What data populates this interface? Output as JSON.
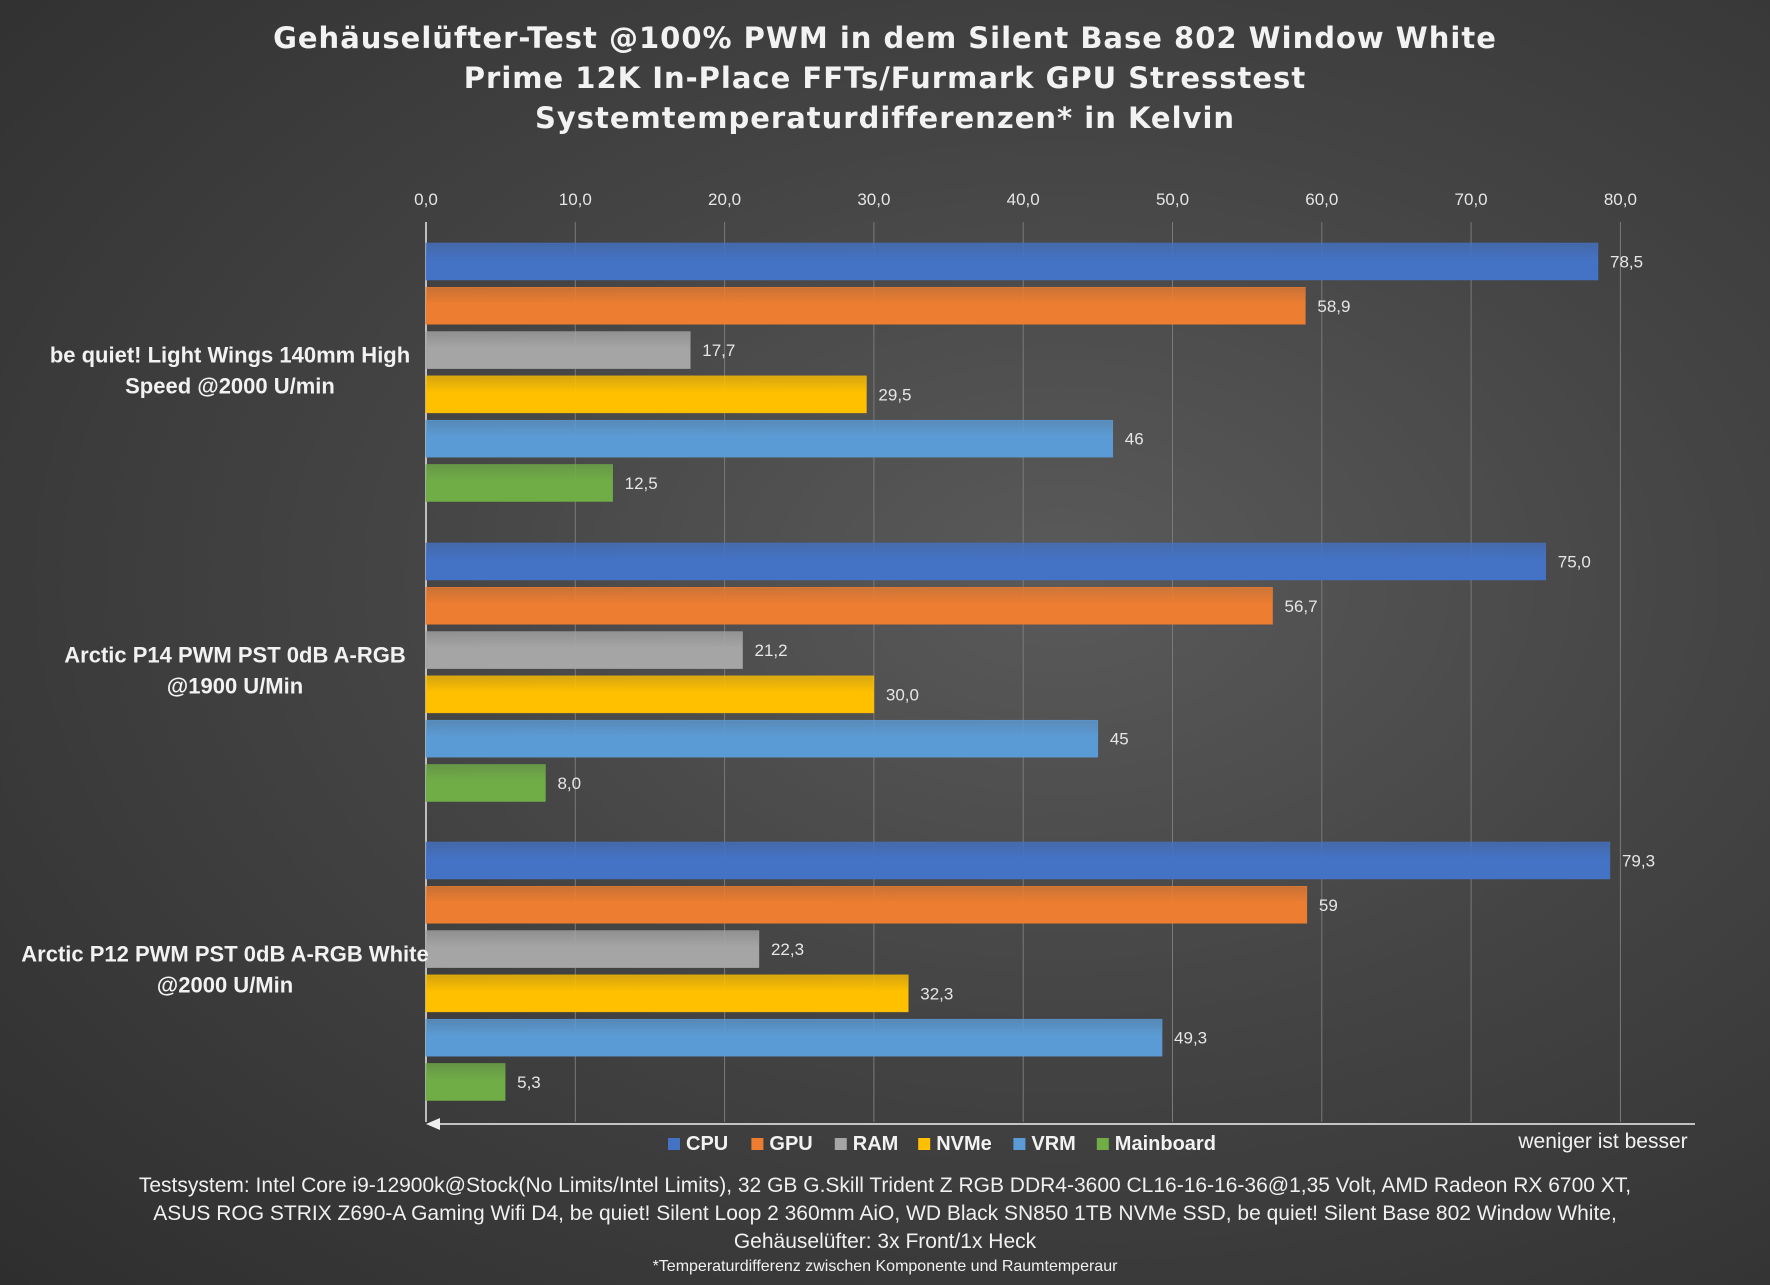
{
  "colors": {
    "CPU": "#4472c4",
    "GPU": "#ed7d31",
    "RAM": "#a5a5a5",
    "NVMe": "#ffc000",
    "VRM": "#5b9bd5",
    "Mainboard": "#70ad47",
    "text": "#f2f2f2",
    "grid": "#7a7a7a"
  },
  "chart_data": {
    "type": "bar",
    "orientation": "horizontal",
    "title": [
      "Gehäuselüfter-Test @100% PWM in dem Silent Base 802 Window White",
      "Prime 12K In-Place FFTs/Furmark GPU Stresstest",
      "Systemtemperaturdifferenzen* in Kelvin"
    ],
    "xlim": [
      0,
      80
    ],
    "x_ticks": [
      "0,0",
      "10,0",
      "20,0",
      "30,0",
      "40,0",
      "50,0",
      "60,0",
      "70,0",
      "80,0"
    ],
    "x_axis_position": "top",
    "axis_note": "weniger ist besser",
    "grid": true,
    "legend_position": "bottom",
    "categories": [
      [
        "be quiet! Light Wings 140mm High",
        "Speed @2000 U/min"
      ],
      [
        "Arctic P14 PWM PST 0dB A-RGB",
        "@1900 U/Min"
      ],
      [
        "Arctic P12 PWM PST 0dB A-RGB White",
        "@2000 U/Min"
      ]
    ],
    "series": [
      {
        "name": "CPU",
        "values": [
          78.5,
          75.0,
          79.3
        ],
        "labels": [
          "78,5",
          "75,0",
          "79,3"
        ]
      },
      {
        "name": "GPU",
        "values": [
          58.9,
          56.7,
          59
        ],
        "labels": [
          "58,9",
          "56,7",
          "59"
        ]
      },
      {
        "name": "RAM",
        "values": [
          17.7,
          21.2,
          22.3
        ],
        "labels": [
          "17,7",
          "21,2",
          "22,3"
        ]
      },
      {
        "name": "NVMe",
        "values": [
          29.5,
          30.0,
          32.3
        ],
        "labels": [
          "29,5",
          "30,0",
          "32,3"
        ]
      },
      {
        "name": "VRM",
        "values": [
          46,
          45,
          49.3
        ],
        "labels": [
          "46",
          "45",
          "49,3"
        ]
      },
      {
        "name": "Mainboard",
        "values": [
          12.5,
          8.0,
          5.3
        ],
        "labels": [
          "12,5",
          "8,0",
          "5,3"
        ]
      }
    ]
  },
  "footer": {
    "line1": "Testsystem: Intel Core i9-12900k@Stock(No Limits/Intel Limits), 32 GB G.Skill Trident Z RGB DDR4-3600 CL16-16-16-36@1,35 Volt, AMD Radeon RX 6700 XT,",
    "line2": "ASUS ROG STRIX Z690-A Gaming Wifi D4, be quiet! Silent Loop 2 360mm AiO, WD Black SN850 1TB NVMe SSD, be quiet! Silent Base 802 Window White,",
    "line3": "Gehäuselüfter: 3x Front/1x Heck",
    "note": "*Temperaturdifferenz zwischen Komponente und Raumtemperaur"
  }
}
